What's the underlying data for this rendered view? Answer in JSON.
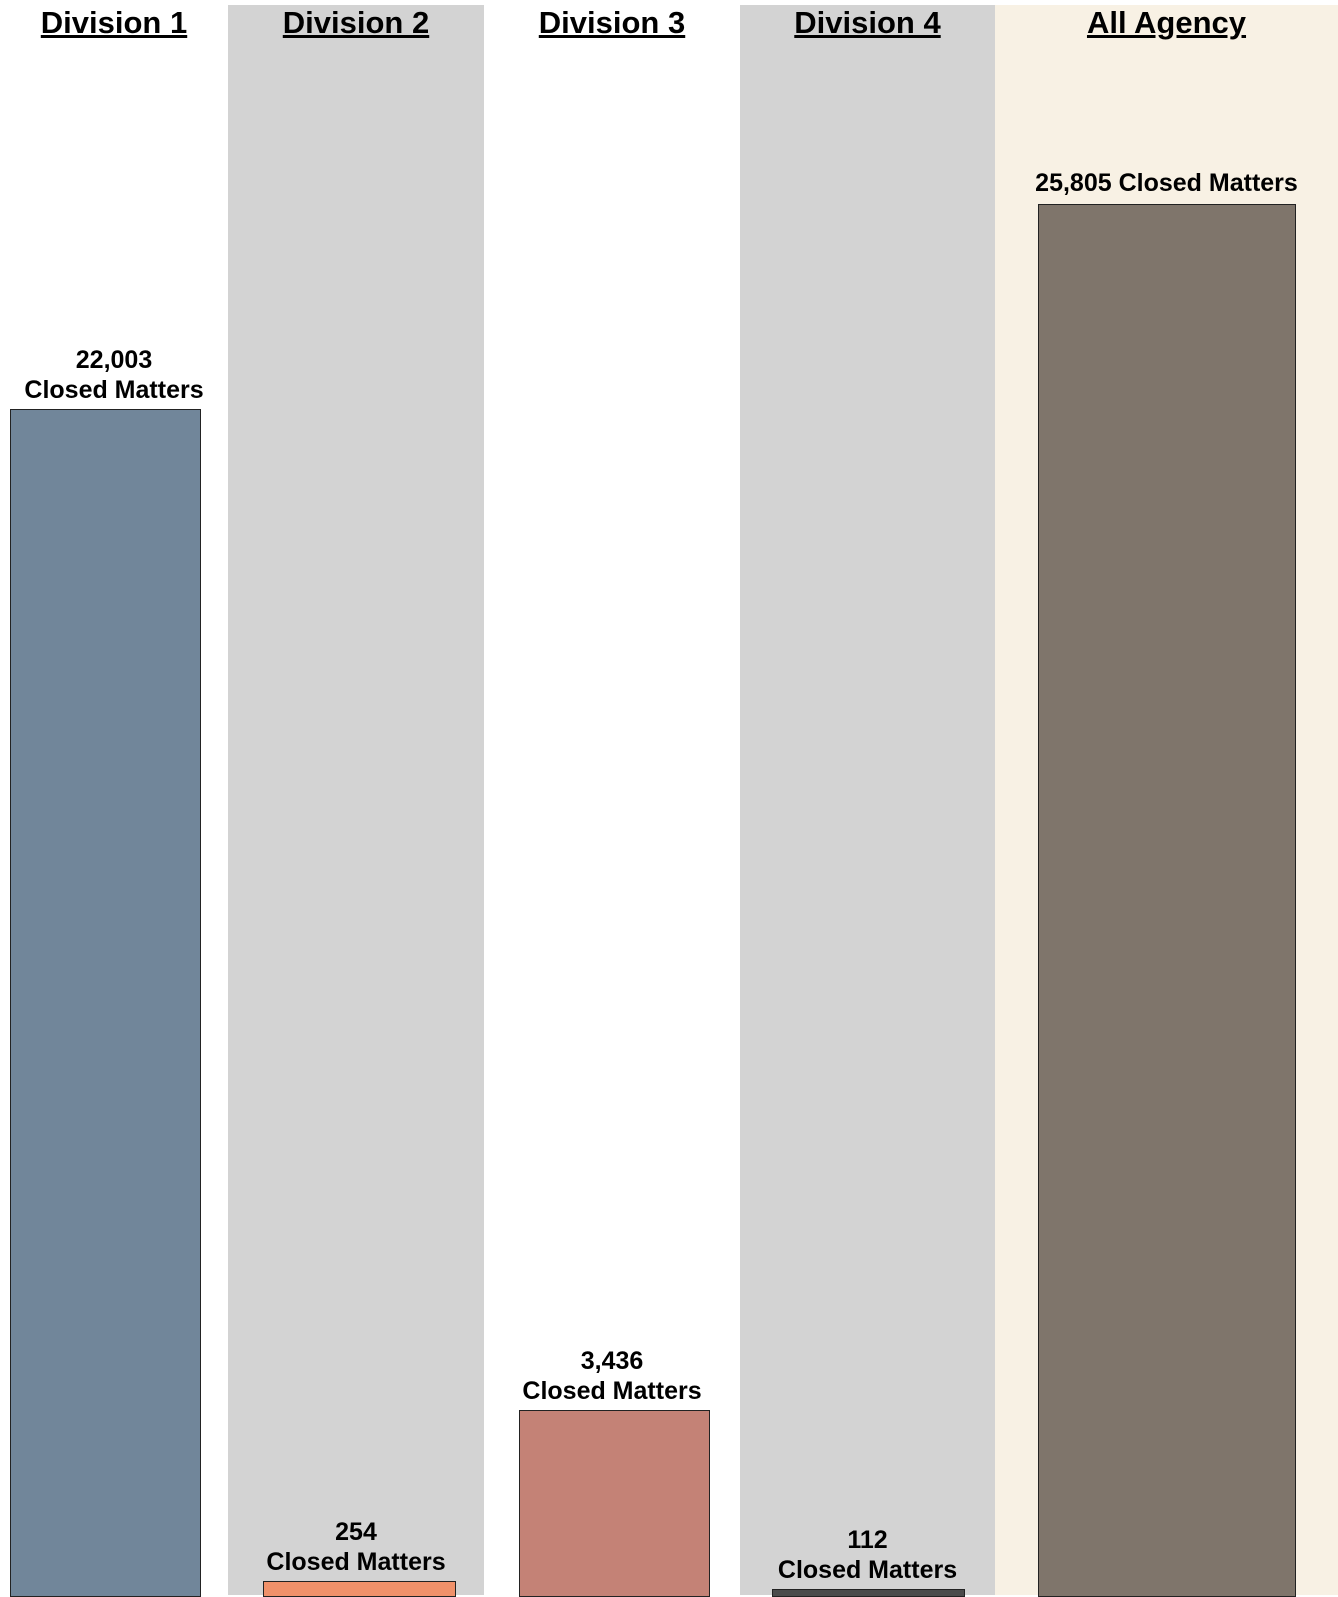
{
  "chart_data": {
    "type": "bar",
    "categories": [
      "Division 1",
      "Division 2",
      "Division 3",
      "Division 4",
      "All Agency"
    ],
    "values": [
      22003,
      254,
      3436,
      112,
      25805
    ],
    "value_labels": [
      {
        "count": "22,003",
        "unit": "Closed Matters"
      },
      {
        "count": "254",
        "unit": "Closed Matters"
      },
      {
        "count": "3,436",
        "unit": "Closed Matters"
      },
      {
        "count": "112",
        "unit": "Closed Matters"
      },
      {
        "count": "25,805",
        "unit": "Closed Matters"
      }
    ],
    "colors": {
      "bars": [
        "#71869a",
        "#f0916a",
        "#c48276",
        "#4b4b4b",
        "#7f756b"
      ],
      "panels": [
        "#ffffff",
        "#d3d3d3",
        "#ffffff",
        "#d3d3d3",
        "#f8f1e4"
      ]
    },
    "title": "",
    "xlabel": "",
    "ylabel": "",
    "ylim": [
      0,
      27000
    ],
    "grid": false,
    "legend": "none"
  }
}
